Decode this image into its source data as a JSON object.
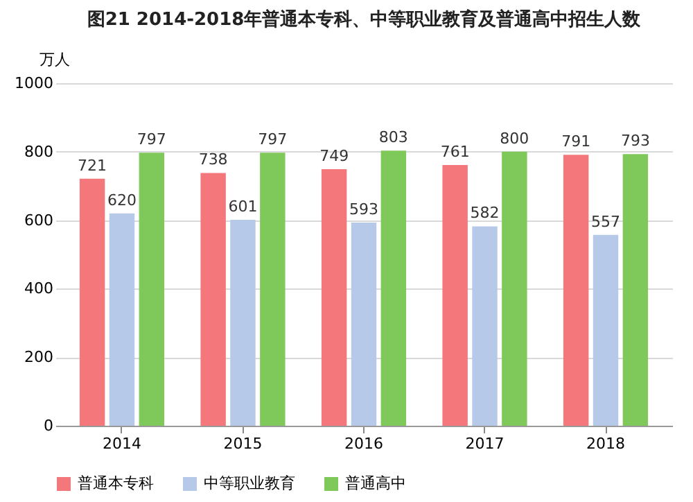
{
  "chart_data": {
    "type": "bar",
    "title": "图21   2014-2018年普通本专科、中等职业教育及普通高中招生人数",
    "ylabel": "万人",
    "categories": [
      "2014",
      "2015",
      "2016",
      "2017",
      "2018"
    ],
    "series": [
      {
        "name": "普通本专科",
        "color": "#f4787b",
        "values": [
          721,
          738,
          749,
          761,
          791
        ]
      },
      {
        "name": "中等职业教育",
        "color": "#b7c9e8",
        "values": [
          620,
          601,
          593,
          582,
          557
        ]
      },
      {
        "name": "普通高中",
        "color": "#7fc95a",
        "values": [
          797,
          797,
          803,
          800,
          793
        ]
      }
    ],
    "ylim": [
      0,
      1000
    ],
    "yticks": [
      0,
      200,
      400,
      600,
      800,
      1000
    ],
    "grid": "y",
    "legend": "bottom",
    "data_labels": true
  }
}
